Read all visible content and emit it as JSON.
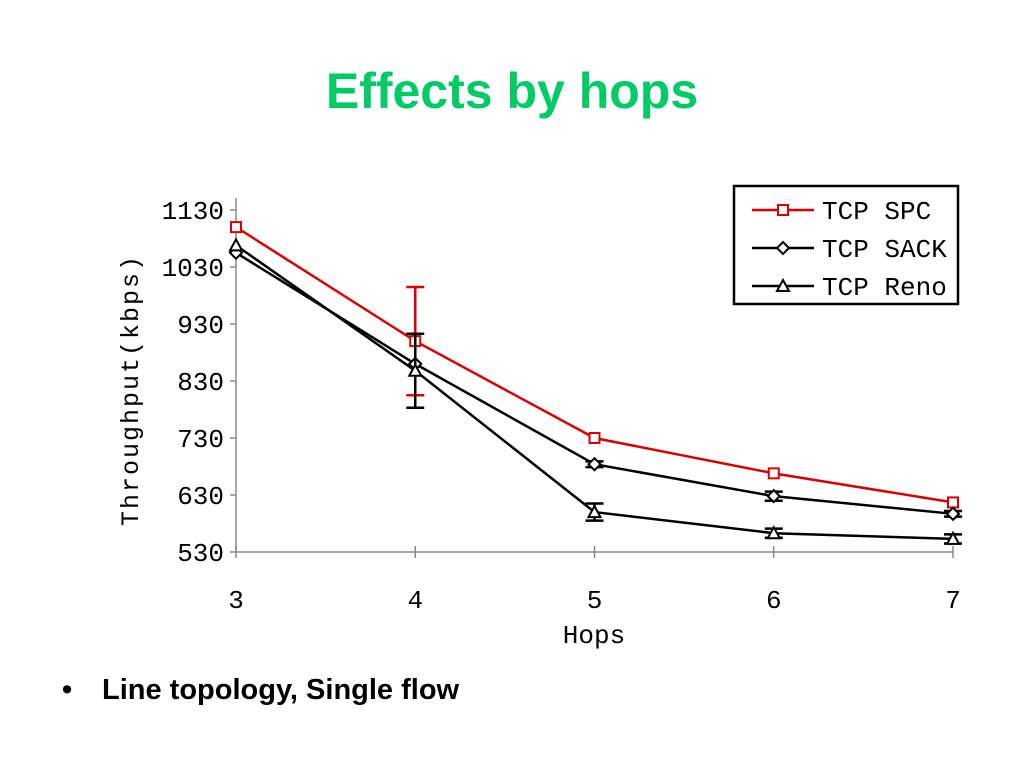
{
  "slide": {
    "title": "Effects by hops",
    "bullet_marker": "•",
    "bullet_text": "Line topology, Single flow"
  },
  "colors": {
    "title": "#00cc66",
    "spc": "#dd0000",
    "sack": "#000000",
    "reno": "#000000"
  },
  "chart_data": {
    "type": "line",
    "xlabel": "Hops",
    "ylabel": "Throughput(kbps)",
    "x": [
      3,
      4,
      5,
      6,
      7
    ],
    "xlim": [
      3,
      7
    ],
    "ylim": [
      530,
      1130
    ],
    "yticks": [
      530,
      630,
      730,
      830,
      930,
      1030,
      1130
    ],
    "xticks": [
      3,
      4,
      5,
      6,
      7
    ],
    "grid": false,
    "legend_position": "top-right",
    "series": [
      {
        "name": "TCP SPC",
        "marker": "square",
        "color": "#dd0000",
        "values": [
          1100,
          900,
          730,
          668,
          617
        ],
        "error": [
          0,
          95,
          0,
          0,
          0
        ]
      },
      {
        "name": "TCP SACK",
        "marker": "diamond",
        "color": "#000000",
        "values": [
          1055,
          860,
          684,
          628,
          597
        ],
        "error": [
          0,
          0,
          5,
          8,
          5
        ]
      },
      {
        "name": "TCP Reno",
        "marker": "triangle",
        "color": "#000000",
        "values": [
          1068,
          848,
          600,
          563,
          553
        ],
        "error": [
          0,
          65,
          15,
          8,
          8
        ]
      }
    ]
  }
}
